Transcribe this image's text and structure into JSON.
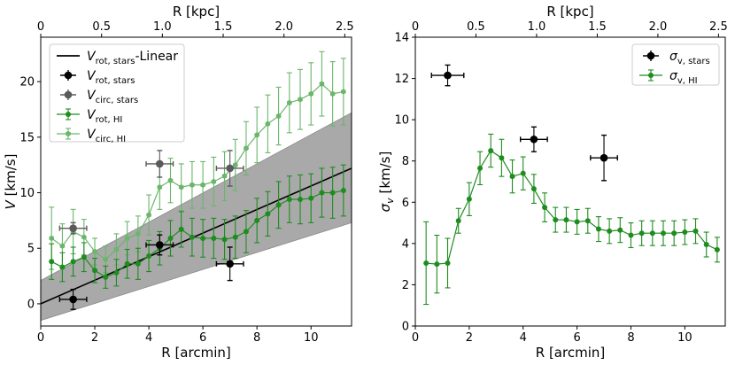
{
  "chart_data": [
    {
      "type": "scatter",
      "xlabel": "R [arcmin]",
      "ylabel": "V [km/s]",
      "top_xlabel": "R [kpc]",
      "xlim": [
        0,
        11.5
      ],
      "ylim": [
        -2,
        24
      ],
      "x_ticks": [
        0,
        2,
        4,
        6,
        8,
        10
      ],
      "y_ticks": [
        0,
        5,
        10,
        15,
        20
      ],
      "top_ticks": [
        0,
        0.5,
        1.0,
        1.5,
        2.0,
        2.5
      ],
      "top_tick_labels": [
        "0",
        "0.5",
        "1.0",
        "1.5",
        "2.0",
        "2.5"
      ],
      "arcmin_per_kpc": 4.5,
      "legend_position": "upper-left",
      "grid": false,
      "fit_line": {
        "name_main": "V",
        "name_sub": "rot, stars",
        "name_suffix": "-Linear",
        "color": "#000000",
        "x0": 0,
        "y0": 0,
        "x1": 11.5,
        "y1": 12.2
      },
      "fit_band": {
        "color": "#a9a9a9",
        "upper": [
          2.1,
          17.2
        ],
        "lower": [
          -1.5,
          7.3
        ]
      },
      "series": [
        {
          "name_main": "V",
          "name_sub": "circ, HI",
          "color": "#6ab66a",
          "marker": "hexagon",
          "x": [
            0.4,
            0.8,
            1.2,
            1.6,
            2.0,
            2.4,
            2.8,
            3.2,
            3.6,
            4.0,
            4.4,
            4.8,
            5.2,
            5.6,
            6.0,
            6.4,
            6.8,
            7.2,
            7.6,
            8.0,
            8.4,
            8.8,
            9.2,
            9.6,
            10.0,
            10.4,
            10.8,
            11.2
          ],
          "y": [
            5.9,
            5.2,
            6.5,
            6.0,
            4.7,
            4.0,
            4.9,
            5.9,
            6.3,
            8.0,
            10.5,
            11.1,
            10.5,
            10.7,
            10.7,
            11.0,
            11.5,
            12.5,
            14.0,
            15.2,
            16.2,
            16.9,
            18.1,
            18.4,
            18.9,
            19.8,
            18.9,
            19.1
          ],
          "yerr": [
            2.8,
            2.0,
            2.0,
            1.6,
            1.2,
            1.2,
            1.4,
            1.5,
            1.6,
            1.8,
            2.0,
            2.0,
            2.1,
            2.1,
            2.1,
            2.2,
            2.2,
            2.3,
            2.4,
            2.5,
            2.6,
            2.6,
            2.7,
            2.7,
            2.8,
            2.9,
            2.9,
            3.0
          ]
        },
        {
          "name_main": "V",
          "name_sub": "rot, HI",
          "color": "#1e8c1e",
          "marker": "circle",
          "x": [
            0.4,
            0.8,
            1.2,
            1.6,
            2.0,
            2.4,
            2.8,
            3.2,
            3.6,
            4.0,
            4.4,
            4.8,
            5.2,
            5.6,
            6.0,
            6.4,
            6.8,
            7.2,
            7.6,
            8.0,
            8.4,
            8.8,
            9.2,
            9.6,
            10.0,
            10.4,
            10.8,
            11.2
          ],
          "y": [
            3.8,
            3.3,
            3.8,
            4.2,
            3.0,
            2.4,
            2.8,
            3.6,
            3.6,
            4.3,
            5.0,
            5.9,
            6.7,
            6.0,
            5.9,
            5.9,
            5.8,
            6.0,
            6.5,
            7.5,
            8.1,
            8.9,
            9.4,
            9.4,
            9.5,
            10.0,
            10.0,
            10.2
          ],
          "yerr": [
            1.6,
            1.3,
            1.3,
            1.3,
            1.1,
            1.0,
            1.2,
            1.3,
            1.4,
            1.4,
            1.5,
            1.6,
            1.6,
            1.7,
            1.7,
            1.8,
            1.8,
            1.9,
            1.9,
            2.0,
            2.0,
            2.1,
            2.1,
            2.2,
            2.2,
            2.2,
            2.3,
            2.3
          ]
        },
        {
          "name_main": "V",
          "name_sub": "circ, stars",
          "color": "#5a5a5a",
          "marker": "circle-large",
          "x": [
            1.2,
            4.4,
            7.0
          ],
          "y": [
            6.8,
            12.6,
            12.2
          ],
          "xerr": [
            0.5,
            0.5,
            0.5
          ],
          "yerr": [
            0.5,
            1.2,
            1.6
          ]
        },
        {
          "name_main": "V",
          "name_sub": "rot, stars",
          "color": "#000000",
          "marker": "circle-large",
          "x": [
            1.2,
            4.4,
            7.0
          ],
          "y": [
            0.4,
            5.3,
            3.6
          ],
          "xerr": [
            0.5,
            0.5,
            0.5
          ],
          "yerr": [
            0.9,
            0.9,
            1.5
          ]
        }
      ],
      "legend_order": [
        {
          "kind": "line",
          "ref": "fit_line"
        },
        {
          "kind": "series",
          "ref": 3
        },
        {
          "kind": "series",
          "ref": 2
        },
        {
          "kind": "series",
          "ref": 1
        },
        {
          "kind": "series",
          "ref": 0
        }
      ]
    },
    {
      "type": "scatter",
      "xlabel": "R [arcmin]",
      "ylabel_main": "σ",
      "ylabel_sub": "v",
      "ylabel_suffix": " [km/s]",
      "top_xlabel": "R [kpc]",
      "xlim": [
        0,
        11.5
      ],
      "ylim": [
        0,
        14
      ],
      "x_ticks": [
        0,
        2,
        4,
        6,
        8,
        10
      ],
      "y_ticks": [
        0,
        2,
        4,
        6,
        8,
        10,
        12,
        14
      ],
      "top_ticks": [
        0,
        0.5,
        1.0,
        1.5,
        2.0,
        2.5
      ],
      "top_tick_labels": [
        "0",
        "0.5",
        "1.0",
        "1.5",
        "2.0",
        "2.5"
      ],
      "arcmin_per_kpc": 4.5,
      "legend_position": "upper-right",
      "grid": false,
      "series": [
        {
          "name_main": "σ",
          "name_sub": "v, HI",
          "color": "#1e8c1e",
          "marker": "circle",
          "x": [
            0.4,
            0.8,
            1.2,
            1.6,
            2.0,
            2.4,
            2.8,
            3.2,
            3.6,
            4.0,
            4.4,
            4.8,
            5.2,
            5.6,
            6.0,
            6.4,
            6.8,
            7.2,
            7.6,
            8.0,
            8.4,
            8.8,
            9.2,
            9.6,
            10.0,
            10.4,
            10.8,
            11.2
          ],
          "y": [
            3.05,
            3.0,
            3.05,
            5.1,
            6.15,
            7.65,
            8.5,
            8.15,
            7.25,
            7.4,
            6.65,
            5.75,
            5.15,
            5.15,
            5.05,
            5.1,
            4.7,
            4.6,
            4.65,
            4.4,
            4.5,
            4.5,
            4.5,
            4.5,
            4.55,
            4.6,
            3.95,
            3.7
          ],
          "yerr": [
            2.0,
            1.4,
            1.2,
            0.6,
            0.8,
            0.8,
            0.8,
            0.9,
            0.8,
            0.8,
            0.7,
            0.7,
            0.6,
            0.6,
            0.6,
            0.6,
            0.6,
            0.6,
            0.6,
            0.6,
            0.6,
            0.6,
            0.6,
            0.6,
            0.6,
            0.6,
            0.6,
            0.6
          ]
        },
        {
          "name_main": "σ",
          "name_sub": "v, stars",
          "color": "#000000",
          "marker": "circle-large",
          "x": [
            1.2,
            4.4,
            7.0
          ],
          "y": [
            12.15,
            9.05,
            8.15
          ],
          "xerr": [
            0.6,
            0.5,
            0.5
          ],
          "yerr": [
            0.5,
            0.6,
            1.1
          ]
        }
      ],
      "legend_order": [
        {
          "kind": "series",
          "ref": 1
        },
        {
          "kind": "series",
          "ref": 0
        }
      ]
    }
  ]
}
